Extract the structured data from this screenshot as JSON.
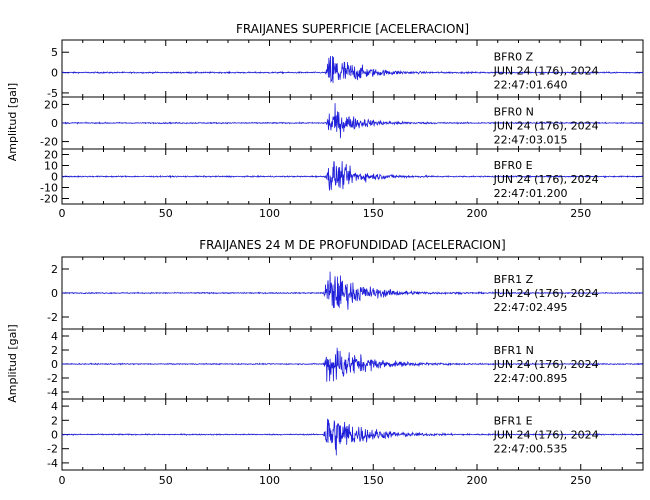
{
  "chart_data": [
    {
      "type": "line",
      "title": "FRAIJANES SUPERFICIE [ACELERACION]",
      "ylabel": "Amplitud [gal]",
      "xlim": [
        0,
        280
      ],
      "x_ticks": [
        0,
        50,
        100,
        150,
        200,
        250
      ],
      "line_color": "#1f1fd9",
      "event_onset_x": 128,
      "coda_end_x": 175,
      "panels": [
        {
          "station": "BFR0",
          "component": "Z",
          "date": "JUN 24 (176), 2024",
          "time": "22:47:01.640",
          "ylim": [
            -6,
            8
          ],
          "y_ticks": [
            -5,
            0,
            5
          ],
          "peak_abs": 7.5,
          "noise_abs": 0.2
        },
        {
          "station": "BFR0",
          "component": "N",
          "date": "JUN 24 (176), 2024",
          "time": "22:47:03.015",
          "ylim": [
            -28,
            28
          ],
          "y_ticks": [
            -20,
            0,
            20
          ],
          "peak_abs": 24,
          "noise_abs": 0.8
        },
        {
          "station": "BFR0",
          "component": "E",
          "date": "JUN 24 (176), 2024",
          "time": "22:47:01.200",
          "ylim": [
            -25,
            25
          ],
          "y_ticks": [
            -20,
            -10,
            0,
            10,
            20
          ],
          "peak_abs": 22,
          "noise_abs": 0.7
        }
      ]
    },
    {
      "type": "line",
      "title": "FRAIJANES 24 M DE PROFUNDIDAD [ACELERACION]",
      "ylabel": "Amplitud [gal]",
      "xlim": [
        0,
        280
      ],
      "x_ticks": [
        0,
        50,
        100,
        150,
        200,
        250
      ],
      "line_color": "#1f1fd9",
      "event_onset_x": 127,
      "coda_end_x": 185,
      "panels": [
        {
          "station": "BFR1",
          "component": "Z",
          "date": "JUN 24 (176), 2024",
          "time": "22:47:02.495",
          "ylim": [
            -3,
            3
          ],
          "y_ticks": [
            -2,
            0,
            2
          ],
          "peak_abs": 2.7,
          "noise_abs": 0.06
        },
        {
          "station": "BFR1",
          "component": "N",
          "date": "JUN 24 (176), 2024",
          "time": "22:47:00.895",
          "ylim": [
            -5,
            5
          ],
          "y_ticks": [
            -4,
            -2,
            0,
            2,
            4
          ],
          "peak_abs": 4.8,
          "noise_abs": 0.1
        },
        {
          "station": "BFR1",
          "component": "E",
          "date": "JUN 24 (176), 2024",
          "time": "22:47:00.535",
          "ylim": [
            -5,
            5
          ],
          "y_ticks": [
            -4,
            -2,
            0,
            2,
            4
          ],
          "peak_abs": 4.8,
          "noise_abs": 0.1
        }
      ]
    }
  ]
}
